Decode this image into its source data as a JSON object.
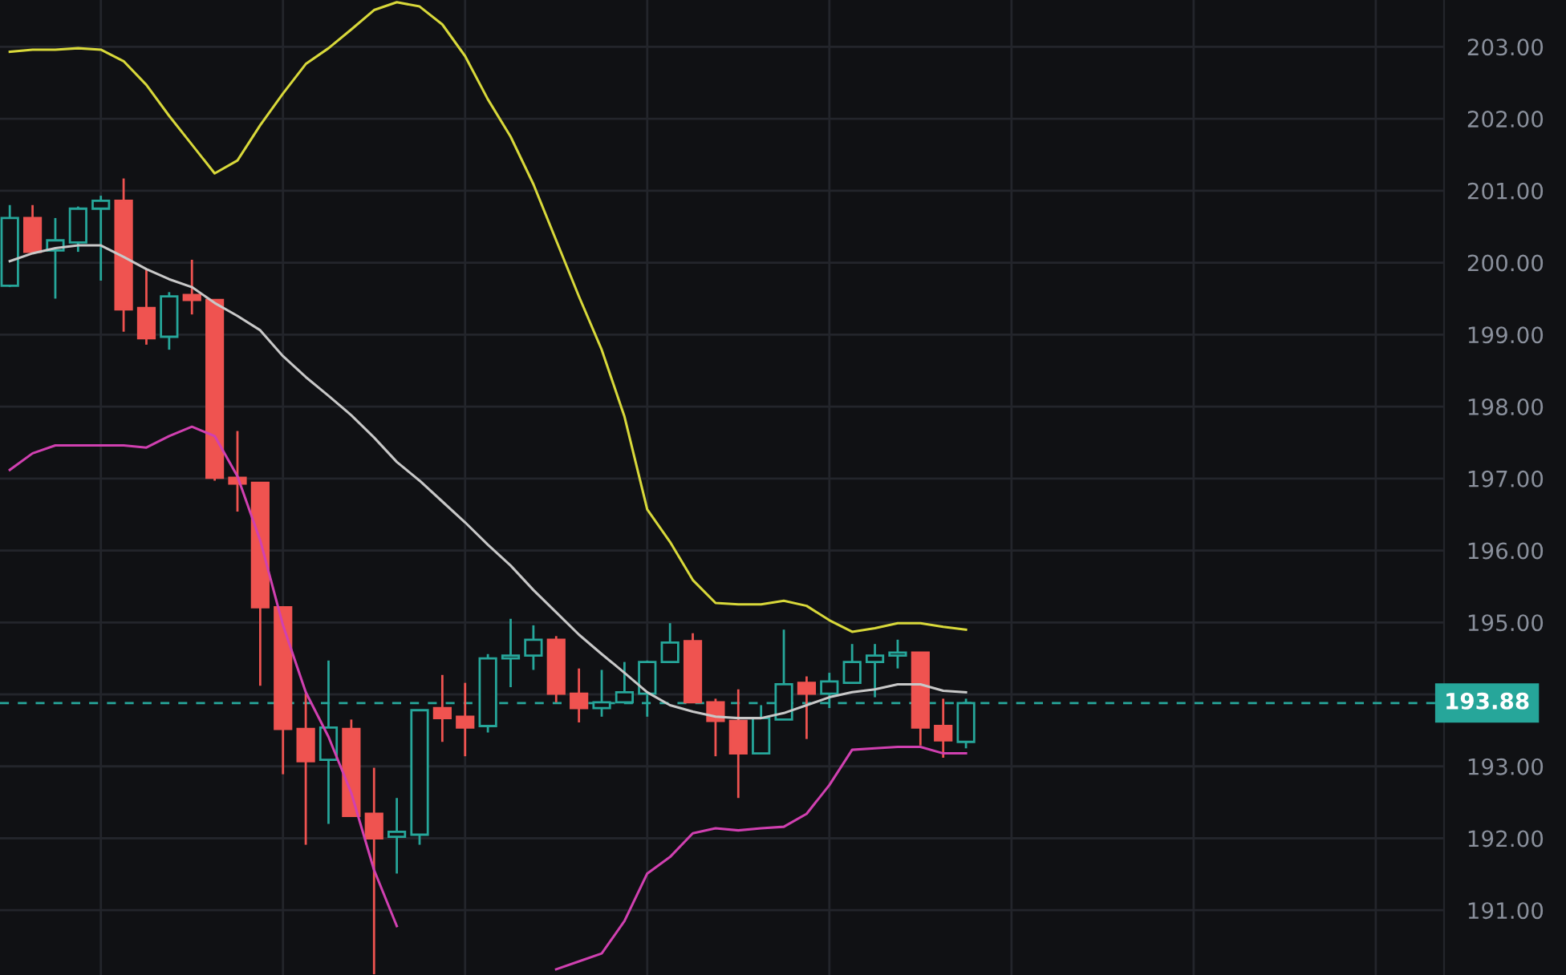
{
  "chart_data": {
    "type": "candlestick",
    "categories": [
      null,
      null,
      null,
      null,
      null,
      null,
      null,
      null,
      null,
      null,
      null,
      null,
      null,
      null,
      null,
      null,
      null,
      null,
      null,
      null,
      null,
      null,
      null,
      null,
      null,
      null,
      null,
      null,
      null,
      null,
      null,
      null,
      null,
      null,
      null,
      null,
      null,
      null,
      null,
      null,
      null,
      null,
      null
    ],
    "ohlc": [
      [
        199.68,
        200.8,
        199.66,
        200.62
      ],
      [
        200.62,
        200.8,
        200.15,
        200.15
      ],
      [
        200.17,
        200.62,
        199.5,
        200.31
      ],
      [
        200.28,
        200.78,
        200.15,
        200.75
      ],
      [
        200.75,
        200.93,
        199.75,
        200.86
      ],
      [
        200.86,
        201.17,
        199.04,
        199.35
      ],
      [
        199.37,
        199.91,
        198.86,
        198.95
      ],
      [
        198.97,
        199.59,
        198.79,
        199.53
      ],
      [
        199.55,
        200.04,
        199.28,
        199.48
      ],
      [
        199.48,
        199.48,
        196.97,
        197.01
      ],
      [
        197.01,
        197.66,
        196.54,
        196.93
      ],
      [
        196.94,
        196.94,
        194.12,
        195.21
      ],
      [
        195.21,
        195.21,
        192.89,
        193.52
      ],
      [
        193.52,
        194.01,
        191.91,
        193.07
      ],
      [
        193.09,
        194.47,
        192.2,
        193.54
      ],
      [
        193.52,
        193.65,
        192.31,
        192.31
      ],
      [
        192.34,
        192.98,
        190.11,
        192.0
      ],
      [
        192.02,
        192.56,
        191.51,
        192.09
      ],
      [
        192.05,
        193.78,
        191.91,
        193.78
      ],
      [
        193.81,
        194.27,
        193.34,
        193.67
      ],
      [
        193.69,
        194.16,
        193.14,
        193.54
      ],
      [
        193.56,
        194.56,
        193.47,
        194.5
      ],
      [
        194.5,
        195.05,
        194.1,
        194.54
      ],
      [
        194.54,
        194.96,
        194.34,
        194.76
      ],
      [
        194.76,
        194.81,
        193.89,
        194.01
      ],
      [
        194.01,
        194.36,
        193.61,
        193.81
      ],
      [
        193.81,
        194.34,
        193.69,
        193.89
      ],
      [
        193.89,
        194.45,
        193.89,
        194.03
      ],
      [
        194.01,
        194.47,
        193.69,
        194.45
      ],
      [
        194.45,
        194.99,
        194.45,
        194.72
      ],
      [
        194.74,
        194.85,
        193.89,
        193.89
      ],
      [
        193.89,
        193.94,
        193.14,
        193.63
      ],
      [
        193.63,
        194.07,
        192.56,
        193.18
      ],
      [
        193.18,
        193.85,
        193.18,
        193.67
      ],
      [
        193.65,
        194.9,
        193.65,
        194.14
      ],
      [
        194.16,
        194.25,
        193.38,
        194.01
      ],
      [
        194.01,
        194.3,
        193.81,
        194.18
      ],
      [
        194.16,
        194.7,
        194.16,
        194.45
      ],
      [
        194.45,
        194.7,
        193.96,
        194.54
      ],
      [
        194.54,
        194.76,
        194.36,
        194.58
      ],
      [
        194.58,
        194.58,
        193.29,
        193.54
      ],
      [
        193.56,
        193.94,
        193.12,
        193.36
      ],
      [
        193.34,
        193.94,
        193.25,
        193.88
      ]
    ],
    "colors": [
      "#26a69a",
      "#ef5350",
      "#26a69a",
      "#26a69a",
      "#26a69a",
      "#ef5350",
      "#ef5350",
      "#26a69a",
      "#ef5350",
      "#ef5350",
      "#ef5350",
      "#ef5350",
      "#ef5350",
      "#ef5350",
      "#26a69a",
      "#ef5350",
      "#ef5350",
      "#26a69a",
      "#26a69a",
      "#ef5350",
      "#ef5350",
      "#26a69a",
      "#26a69a",
      "#26a69a",
      "#ef5350",
      "#ef5350",
      "#26a69a",
      "#26a69a",
      "#26a69a",
      "#26a69a",
      "#ef5350",
      "#ef5350",
      "#ef5350",
      "#26a69a",
      "#26a69a",
      "#ef5350",
      "#26a69a",
      "#26a69a",
      "#26a69a",
      "#26a69a",
      "#ef5350",
      "#ef5350",
      "#26a69a"
    ],
    "series": [
      {
        "type": "line",
        "color": "#d8d83a",
        "values": [
          202.93,
          202.96,
          202.96,
          202.98,
          202.96,
          202.8,
          202.47,
          202.04,
          201.64,
          201.24,
          201.42,
          201.91,
          202.35,
          202.76,
          202.98,
          203.24,
          203.51,
          203.62,
          203.56,
          203.31,
          202.87,
          202.27,
          201.75,
          201.09,
          200.31,
          199.53,
          198.79,
          197.86,
          196.57,
          196.12,
          195.59,
          195.27,
          195.25,
          195.25,
          195.3,
          195.23,
          195.03,
          194.87,
          194.92,
          194.99,
          194.99,
          194.94,
          194.9
        ]
      },
      {
        "type": "line",
        "color": "#c8c8c8",
        "values": [
          200.02,
          200.13,
          200.2,
          200.24,
          200.24,
          200.08,
          199.91,
          199.77,
          199.66,
          199.44,
          199.26,
          199.06,
          198.7,
          198.41,
          198.15,
          197.88,
          197.57,
          197.23,
          196.97,
          196.68,
          196.39,
          196.08,
          195.79,
          195.45,
          195.14,
          194.83,
          194.56,
          194.3,
          194.03,
          193.85,
          193.76,
          193.69,
          193.67,
          193.67,
          193.74,
          193.85,
          193.96,
          194.03,
          194.07,
          194.14,
          194.14,
          194.05,
          194.03
        ]
      },
      {
        "type": "line",
        "color": "#d040b0",
        "values": [
          197.12,
          197.35,
          197.46,
          197.46,
          197.46,
          197.46,
          197.43,
          197.59,
          197.72,
          197.59,
          197.03,
          196.14,
          194.96,
          194.03,
          193.41,
          192.63,
          191.56,
          190.78,
          null,
          null,
          null,
          null,
          null,
          null,
          190.18,
          190.29,
          190.4,
          190.85,
          191.51,
          191.74,
          192.07,
          192.14,
          192.11,
          192.14,
          192.16,
          192.34,
          192.74,
          193.23,
          193.25,
          193.27,
          193.27,
          193.18,
          193.18
        ]
      }
    ],
    "ylim": [
      190.1,
      203.65
    ],
    "yticks": [
      {
        "value": 191,
        "label": "191.00"
      },
      {
        "value": 192,
        "label": "192.00"
      },
      {
        "value": 193,
        "label": "193.00"
      },
      {
        "value": 194,
        "label": null
      },
      {
        "value": 195,
        "label": "195.00"
      },
      {
        "value": 196,
        "label": "196.00"
      },
      {
        "value": 197,
        "label": "197.00"
      },
      {
        "value": 198,
        "label": "198.00"
      },
      {
        "value": 199,
        "label": "199.00"
      },
      {
        "value": 200,
        "label": "200.00"
      },
      {
        "value": 201,
        "label": "201.00"
      },
      {
        "value": 202,
        "label": "202.00"
      },
      {
        "value": 203,
        "label": "203.00"
      }
    ],
    "grid": true,
    "ref_lines": [
      {
        "axis": "y",
        "value": 193.88,
        "label": "193.88",
        "color": "#26a69a",
        "line_style": "dashed"
      }
    ]
  }
}
